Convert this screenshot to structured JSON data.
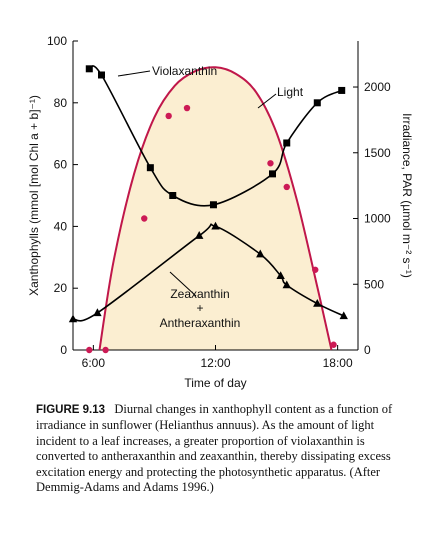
{
  "chart_data": {
    "type": "line",
    "x_unit": "hour of day",
    "xlim": [
      5,
      19
    ],
    "xlabel": "Time of day",
    "x_ticks": [
      6,
      12,
      18
    ],
    "x_tick_labels": [
      "6:00",
      "12:00",
      "18:00"
    ],
    "ylabel": "Xanthophylls (mmol [mol Chl a + b]⁻¹)",
    "ylim": [
      0,
      100
    ],
    "y_ticks": [
      0,
      20,
      40,
      60,
      80,
      100
    ],
    "y_tick_labels": [
      "0",
      "20",
      "40",
      "60",
      "80",
      "100"
    ],
    "y2label": "Irradiance, PAR (µmol m⁻² s⁻¹)",
    "y2lim": [
      0,
      2350
    ],
    "y2_ticks": [
      0,
      500,
      1000,
      1500,
      2000
    ],
    "y2_tick_labels": [
      "0",
      "500",
      "1000",
      "1500",
      "2000"
    ],
    "series": [
      {
        "name": "Violaxanthin",
        "axis": "left",
        "color": "#000000",
        "marker": "square",
        "x": [
          5.8,
          6.4,
          8.8,
          9.9,
          11.9,
          14.8,
          15.5,
          17.0,
          18.2
        ],
        "y": [
          91,
          89,
          59,
          50,
          47,
          57,
          67,
          80,
          84
        ]
      },
      {
        "name": "Zeaxanthin + Antheraxanthin",
        "axis": "left",
        "color": "#000000",
        "marker": "triangle",
        "x": [
          5.0,
          6.2,
          11.2,
          12.0,
          14.2,
          15.2,
          15.5,
          17.0,
          18.3
        ],
        "y": [
          10,
          12,
          37,
          40,
          31,
          24,
          21,
          15,
          11
        ]
      },
      {
        "name": "Light",
        "axis": "right",
        "type": "area",
        "color": "#c0174a",
        "fill": "#fbeed1",
        "x": [
          6.3,
          7.0,
          8.0,
          9.0,
          10.0,
          11.0,
          12.0,
          13.0,
          14.0,
          15.0,
          16.0,
          17.0,
          17.7
        ],
        "y": [
          0,
          680,
          1340,
          1770,
          2010,
          2120,
          2150,
          2100,
          1960,
          1650,
          1140,
          480,
          0
        ]
      },
      {
        "name": "Light measurements",
        "axis": "right",
        "type": "scatter",
        "color": "#cc1a55",
        "x": [
          5.8,
          6.6,
          8.5,
          9.7,
          10.6,
          14.7,
          15.5,
          16.9,
          17.8
        ],
        "y": [
          0,
          0,
          1000,
          1780,
          1840,
          1420,
          1240,
          610,
          40
        ]
      }
    ],
    "annotations": [
      "Violaxanthin",
      "Light",
      "Zeaxanthin",
      "+",
      "Antheraxanthin"
    ]
  },
  "caption": {
    "label": "FIGURE 9.13",
    "text": "Diurnal changes in xanthophyll content as a function of irradiance in sunflower (Helianthus annuus). As the amount of light incident to a leaf increases, a greater proportion of violaxanthin is converted to antheraxanthin and zeaxanthin, thereby dissipating excess excitation energy and protecting the photosynthetic apparatus. (After Demmig-Adams and Adams 1996.)"
  }
}
